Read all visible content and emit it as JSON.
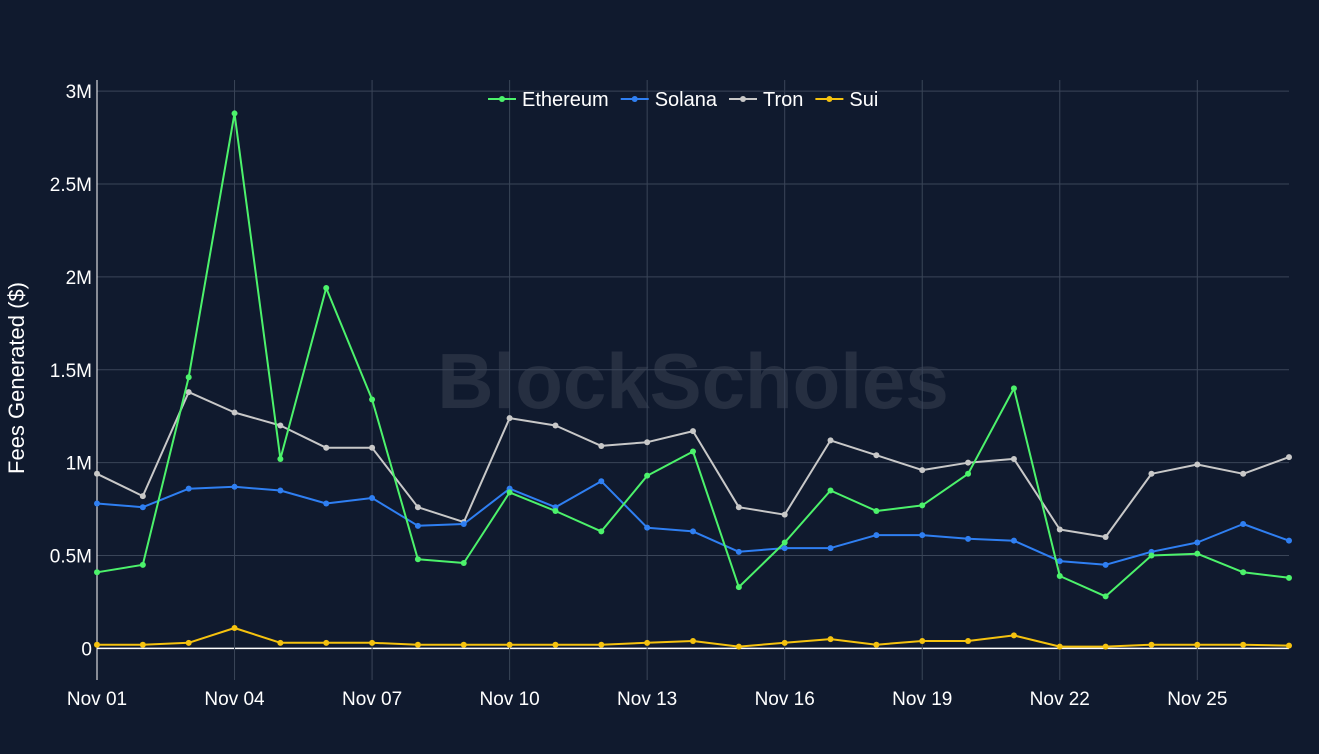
{
  "chart_data": {
    "type": "line",
    "title": "",
    "watermark": "BlockScholes",
    "xlabel": "",
    "ylabel": "Fees Generated ($)",
    "x": [
      "Nov 01",
      "Nov 02",
      "Nov 03",
      "Nov 04",
      "Nov 05",
      "Nov 06",
      "Nov 07",
      "Nov 08",
      "Nov 09",
      "Nov 10",
      "Nov 11",
      "Nov 12",
      "Nov 13",
      "Nov 14",
      "Nov 15",
      "Nov 16",
      "Nov 17",
      "Nov 18",
      "Nov 19",
      "Nov 20",
      "Nov 21",
      "Nov 22",
      "Nov 23",
      "Nov 24",
      "Nov 25",
      "Nov 26",
      "Nov 27"
    ],
    "xticks": [
      "Nov 01",
      "Nov 04",
      "Nov 07",
      "Nov 10",
      "Nov 13",
      "Nov 16",
      "Nov 19",
      "Nov 22",
      "Nov 25"
    ],
    "yticks": [
      {
        "value": 0,
        "label": "0"
      },
      {
        "value": 500000,
        "label": "0.5M"
      },
      {
        "value": 1000000,
        "label": "1M"
      },
      {
        "value": 1500000,
        "label": "1.5M"
      },
      {
        "value": 2000000,
        "label": "2M"
      },
      {
        "value": 2500000,
        "label": "2.5M"
      },
      {
        "value": 3000000,
        "label": "3M"
      }
    ],
    "ylim": [
      -170000,
      3060000
    ],
    "grid": true,
    "legend_position": "top-center",
    "series": [
      {
        "name": "Ethereum",
        "color": "#4cf26b",
        "values": [
          410000,
          450000,
          1460000,
          2880000,
          1020000,
          1940000,
          1340000,
          480000,
          460000,
          840000,
          740000,
          630000,
          930000,
          1060000,
          330000,
          570000,
          850000,
          740000,
          770000,
          940000,
          1400000,
          390000,
          280000,
          500000,
          510000,
          410000,
          380000
        ]
      },
      {
        "name": "Solana",
        "color": "#2f7ff2",
        "values": [
          780000,
          760000,
          860000,
          870000,
          850000,
          780000,
          810000,
          660000,
          670000,
          860000,
          760000,
          900000,
          650000,
          630000,
          520000,
          540000,
          540000,
          610000,
          610000,
          590000,
          580000,
          470000,
          450000,
          520000,
          570000,
          670000,
          580000
        ]
      },
      {
        "name": "Tron",
        "color": "#c8c8c8",
        "values": [
          940000,
          820000,
          1380000,
          1270000,
          1200000,
          1080000,
          1080000,
          760000,
          680000,
          1240000,
          1200000,
          1090000,
          1110000,
          1170000,
          760000,
          720000,
          1120000,
          1040000,
          960000,
          1000000,
          1020000,
          640000,
          600000,
          940000,
          990000,
          940000,
          1030000
        ]
      },
      {
        "name": "Sui",
        "color": "#f5c20f",
        "values": [
          20000,
          20000,
          30000,
          110000,
          30000,
          30000,
          30000,
          20000,
          20000,
          20000,
          20000,
          20000,
          30000,
          40000,
          10000,
          30000,
          50000,
          20000,
          40000,
          40000,
          70000,
          10000,
          10000,
          20000,
          20000,
          20000,
          15000
        ]
      }
    ]
  }
}
